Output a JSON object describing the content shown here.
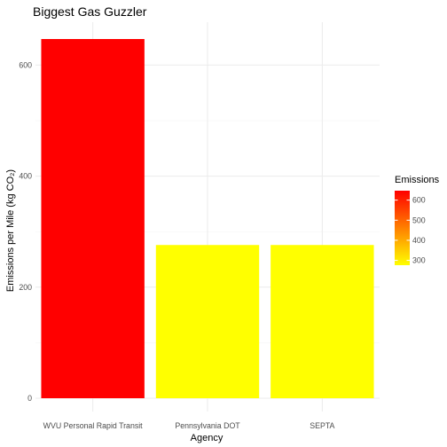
{
  "chart_data": {
    "type": "bar",
    "title": "Biggest Gas Guzzler",
    "xlabel": "Agency",
    "ylabel": "Emissions per Mile (kg CO₂)",
    "categories": [
      "WVU Personal Rapid Transit",
      "Pennsylvania DOT",
      "SEPTA"
    ],
    "values": [
      647,
      276,
      276
    ],
    "ylim": [
      0,
      647
    ],
    "yticks": [
      0,
      200,
      400,
      600
    ],
    "grid": true,
    "fill_scale": {
      "low_color": "#ffff00",
      "high_color": "#ff0000",
      "limits": [
        276,
        647
      ]
    },
    "legend": {
      "title": "Emissions",
      "position": "right",
      "ticks": [
        300,
        400,
        500,
        600
      ]
    }
  }
}
